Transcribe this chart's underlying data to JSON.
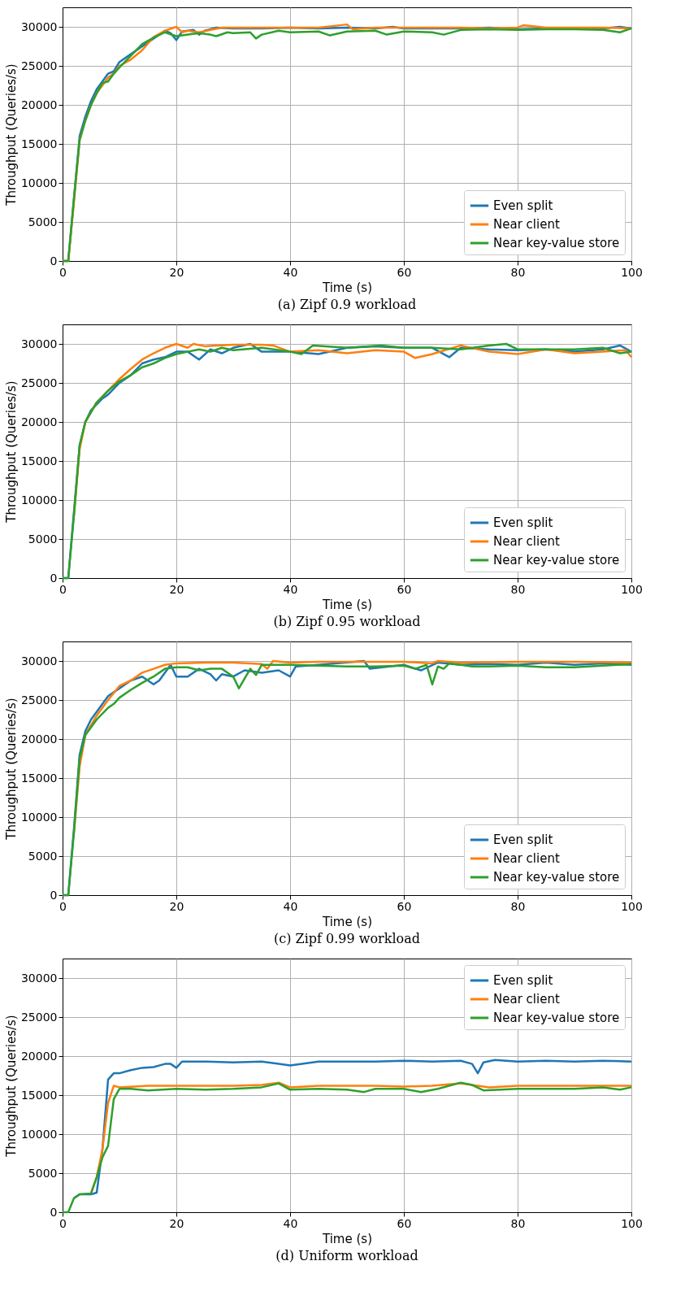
{
  "chart_data": [
    {
      "type": "line",
      "title": "(a) Zipf 0.9 workload",
      "xlabel": "Time (s)",
      "ylabel": "Throughput (Queries/s)",
      "xlim": [
        0,
        100
      ],
      "ylim": [
        0,
        32500
      ],
      "xticks": [
        0,
        20,
        40,
        60,
        80,
        100
      ],
      "yticks": [
        0,
        5000,
        10000,
        15000,
        20000,
        25000,
        30000
      ],
      "grid": true,
      "legend": "bottom right",
      "line_style": "solid",
      "marker": "none",
      "series": [
        {
          "name": "Even split",
          "color": "#1f77b4",
          "x": [
            0,
            1,
            2,
            3,
            4,
            5,
            6,
            7,
            8,
            9,
            10,
            12,
            14,
            16,
            18,
            19,
            20,
            21,
            23,
            24,
            25,
            27,
            30,
            35,
            40,
            45,
            50,
            55,
            58,
            60,
            65,
            70,
            75,
            80,
            85,
            90,
            95,
            98,
            100
          ],
          "values": [
            0,
            0,
            8000,
            16000,
            18500,
            20500,
            22000,
            23000,
            24000,
            24300,
            25500,
            26500,
            27500,
            28500,
            29500,
            29200,
            28300,
            29400,
            29600,
            29000,
            29500,
            29900,
            29800,
            29800,
            29900,
            29800,
            29900,
            29800,
            30000,
            29800,
            29800,
            29800,
            29900,
            29700,
            29800,
            29800,
            29800,
            30000,
            29800
          ]
        },
        {
          "name": "Near client",
          "color": "#ff7f0e",
          "x": [
            0,
            1,
            2,
            3,
            4,
            5,
            6,
            7,
            8,
            9,
            10,
            12,
            14,
            16,
            18,
            20,
            21,
            22,
            24,
            26,
            28,
            30,
            35,
            40,
            45,
            50,
            51,
            55,
            60,
            65,
            70,
            75,
            80,
            81,
            85,
            90,
            95,
            100
          ],
          "values": [
            0,
            0,
            7500,
            15500,
            18000,
            20000,
            21500,
            22500,
            23500,
            24000,
            25000,
            25800,
            27000,
            28700,
            29500,
            30000,
            29300,
            29500,
            29300,
            29600,
            29900,
            29900,
            29900,
            29900,
            29900,
            30300,
            29700,
            29900,
            29900,
            29900,
            29900,
            29800,
            29900,
            30200,
            29900,
            29900,
            29900,
            29800
          ]
        },
        {
          "name": "Near key-value store",
          "color": "#2ca02c",
          "x": [
            0,
            1,
            2,
            3,
            4,
            5,
            6,
            7,
            8,
            9,
            10,
            12,
            14,
            16,
            18,
            20,
            22,
            24,
            26,
            27,
            29,
            30,
            33,
            34,
            35,
            38,
            40,
            45,
            47,
            50,
            55,
            57,
            60,
            65,
            67,
            70,
            75,
            80,
            85,
            90,
            95,
            98,
            100
          ],
          "values": [
            0,
            0,
            8000,
            15500,
            18000,
            20000,
            21500,
            22800,
            23000,
            24000,
            24800,
            26300,
            27800,
            28600,
            29300,
            28800,
            29000,
            29200,
            29000,
            28800,
            29300,
            29200,
            29300,
            28500,
            29000,
            29500,
            29300,
            29400,
            28900,
            29400,
            29500,
            29000,
            29400,
            29300,
            29000,
            29600,
            29700,
            29600,
            29700,
            29700,
            29600,
            29300,
            29800
          ]
        }
      ]
    },
    {
      "type": "line",
      "title": "(b) Zipf 0.95 workload",
      "xlabel": "Time (s)",
      "ylabel": "Throughput (Queries/s)",
      "xlim": [
        0,
        100
      ],
      "ylim": [
        0,
        32500
      ],
      "xticks": [
        0,
        20,
        40,
        60,
        80,
        100
      ],
      "yticks": [
        0,
        5000,
        10000,
        15000,
        20000,
        25000,
        30000
      ],
      "grid": true,
      "legend": "bottom right",
      "line_style": "solid",
      "marker": "none",
      "series": [
        {
          "name": "Even split",
          "color": "#1f77b4",
          "x": [
            0,
            1,
            2,
            3,
            4,
            5,
            7,
            8,
            10,
            12,
            14,
            16,
            18,
            20,
            22,
            24,
            26,
            28,
            30,
            33,
            35,
            40,
            45,
            50,
            55,
            60,
            65,
            68,
            70,
            75,
            80,
            85,
            90,
            95,
            98,
            100
          ],
          "values": [
            0,
            0,
            8500,
            17000,
            20000,
            21500,
            23000,
            23500,
            25000,
            26000,
            27500,
            28000,
            28300,
            29000,
            29000,
            28000,
            29300,
            28800,
            29500,
            30000,
            29000,
            29000,
            28700,
            29500,
            29700,
            29500,
            29500,
            28300,
            29500,
            29300,
            29200,
            29300,
            29000,
            29300,
            29800,
            29000
          ]
        },
        {
          "name": "Near client",
          "color": "#ff7f0e",
          "x": [
            2,
            3,
            4,
            6,
            8,
            10,
            12,
            14,
            16,
            18,
            20,
            22,
            23,
            25,
            30,
            35,
            37,
            40,
            45,
            50,
            55,
            60,
            62,
            65,
            70,
            75,
            80,
            85,
            90,
            95,
            99,
            100
          ],
          "values": [
            8000,
            16500,
            20000,
            22500,
            24000,
            25500,
            26800,
            28000,
            28800,
            29500,
            30000,
            29500,
            30000,
            29700,
            29900,
            29900,
            29800,
            29000,
            29200,
            28800,
            29200,
            29000,
            28200,
            28700,
            29800,
            29000,
            28700,
            29300,
            28800,
            29000,
            29200,
            28300
          ]
        },
        {
          "name": "Near key-value store",
          "color": "#2ca02c",
          "x": [
            0,
            1,
            2,
            3,
            4,
            6,
            8,
            10,
            12,
            14,
            16,
            18,
            20,
            22,
            24,
            26,
            28,
            30,
            35,
            40,
            42,
            44,
            50,
            56,
            60,
            65,
            70,
            75,
            78,
            80,
            85,
            90,
            95,
            98,
            100
          ],
          "values": [
            0,
            0,
            8000,
            17000,
            20000,
            22500,
            24000,
            25200,
            26000,
            27000,
            27500,
            28200,
            28700,
            29000,
            29300,
            29000,
            29500,
            29200,
            29500,
            29000,
            28700,
            29800,
            29500,
            29800,
            29500,
            29500,
            29300,
            29800,
            30000,
            29300,
            29300,
            29300,
            29500,
            28800,
            29000
          ]
        }
      ]
    },
    {
      "type": "line",
      "title": "(c) Zipf 0.99 workload",
      "xlabel": "Time (s)",
      "ylabel": "Throughput (Queries/s)",
      "xlim": [
        0,
        100
      ],
      "ylim": [
        0,
        32500
      ],
      "xticks": [
        0,
        20,
        40,
        60,
        80,
        100
      ],
      "yticks": [
        0,
        5000,
        10000,
        15000,
        20000,
        25000,
        30000
      ],
      "grid": true,
      "legend": "bottom right",
      "line_style": "solid",
      "marker": "none",
      "series": [
        {
          "name": "Even split",
          "color": "#1f77b4",
          "x": [
            0,
            1,
            2,
            3,
            4,
            5,
            6,
            8,
            10,
            12,
            14,
            15,
            16,
            17,
            19,
            20,
            22,
            24,
            26,
            27,
            28,
            30,
            32,
            35,
            38,
            40,
            41,
            45,
            53,
            54,
            60,
            63,
            66,
            70,
            75,
            80,
            85,
            90,
            95,
            100
          ],
          "values": [
            0,
            0,
            8500,
            18000,
            21000,
            22500,
            23500,
            25500,
            26500,
            27500,
            28000,
            27500,
            27000,
            27500,
            29500,
            28000,
            28000,
            29000,
            28300,
            27500,
            28300,
            28000,
            28800,
            28500,
            28800,
            28000,
            29300,
            29500,
            30000,
            29000,
            29500,
            28800,
            29800,
            29500,
            29600,
            29500,
            29800,
            29500,
            29700,
            29500
          ]
        },
        {
          "name": "Near client",
          "color": "#ff7f0e",
          "x": [
            2,
            3,
            4,
            6,
            8,
            10,
            12,
            14,
            16,
            18,
            20,
            25,
            30,
            35,
            36,
            37,
            40,
            45,
            53,
            60,
            65,
            66,
            70,
            80,
            90,
            100
          ],
          "values": [
            8000,
            16500,
            20500,
            23000,
            25000,
            26800,
            27500,
            28500,
            29000,
            29500,
            29700,
            29800,
            29800,
            29600,
            29000,
            30000,
            29800,
            29900,
            29900,
            29900,
            29700,
            30000,
            29800,
            29900,
            29900,
            29800
          ]
        },
        {
          "name": "Near key-value store",
          "color": "#2ca02c",
          "x": [
            0,
            1,
            2,
            3,
            4,
            6,
            8,
            9,
            10,
            12,
            14,
            16,
            18,
            20,
            22,
            24,
            26,
            28,
            30,
            31,
            33,
            34,
            35,
            40,
            45,
            50,
            55,
            60,
            62,
            64,
            65,
            66,
            67,
            68,
            72,
            75,
            80,
            85,
            90,
            95,
            100
          ],
          "values": [
            0,
            0,
            8000,
            17500,
            20500,
            22500,
            24000,
            24500,
            25300,
            26300,
            27200,
            28000,
            29000,
            29200,
            29200,
            28800,
            29000,
            29000,
            28000,
            26500,
            29000,
            28200,
            29500,
            29500,
            29400,
            29300,
            29300,
            29400,
            29000,
            29500,
            27000,
            29300,
            29000,
            29700,
            29300,
            29300,
            29400,
            29200,
            29200,
            29400,
            29600
          ]
        }
      ]
    },
    {
      "type": "line",
      "title": "(d) Uniform workload",
      "xlabel": "Time (s)",
      "ylabel": "Throughput (Queries/s)",
      "xlim": [
        0,
        100
      ],
      "ylim": [
        0,
        32500
      ],
      "xticks": [
        0,
        20,
        40,
        60,
        80,
        100
      ],
      "yticks": [
        0,
        5000,
        10000,
        15000,
        20000,
        25000,
        30000
      ],
      "grid": true,
      "legend": "top right",
      "line_style": "solid",
      "marker": "none",
      "series": [
        {
          "name": "Even split",
          "color": "#1f77b4",
          "x": [
            2,
            3,
            4,
            5,
            6,
            7,
            8,
            9,
            10,
            12,
            14,
            16,
            18,
            19,
            20,
            21,
            25,
            30,
            35,
            38,
            40,
            45,
            50,
            55,
            60,
            65,
            70,
            72,
            73,
            74,
            76,
            80,
            85,
            90,
            95,
            100
          ],
          "values": [
            1800,
            2300,
            2300,
            2300,
            2500,
            8000,
            17000,
            17800,
            17800,
            18200,
            18500,
            18600,
            19000,
            19000,
            18500,
            19300,
            19300,
            19200,
            19300,
            19000,
            18800,
            19300,
            19300,
            19300,
            19400,
            19300,
            19400,
            19000,
            17800,
            19200,
            19500,
            19300,
            19400,
            19300,
            19400,
            19300
          ]
        },
        {
          "name": "Near client",
          "color": "#ff7f0e",
          "x": [
            5,
            6,
            7,
            8,
            9,
            10,
            15,
            20,
            25,
            30,
            35,
            38,
            40,
            45,
            50,
            55,
            60,
            65,
            70,
            75,
            80,
            85,
            90,
            100
          ],
          "values": [
            2400,
            4500,
            8000,
            14000,
            16200,
            16000,
            16200,
            16200,
            16200,
            16200,
            16300,
            16600,
            16000,
            16200,
            16200,
            16200,
            16100,
            16200,
            16500,
            16000,
            16200,
            16200,
            16200,
            16200
          ]
        },
        {
          "name": "Near key-value store",
          "color": "#2ca02c",
          "x": [
            0,
            1,
            2,
            3,
            5,
            6,
            7,
            8,
            9,
            10,
            12,
            15,
            20,
            25,
            30,
            35,
            38,
            40,
            45,
            50,
            53,
            55,
            60,
            63,
            66,
            70,
            72,
            74,
            80,
            85,
            90,
            95,
            98,
            100
          ],
          "values": [
            0,
            0,
            1800,
            2300,
            2400,
            4500,
            7000,
            8500,
            14500,
            15800,
            15800,
            15600,
            15800,
            15700,
            15800,
            16000,
            16500,
            15700,
            15800,
            15700,
            15400,
            15800,
            15800,
            15400,
            15800,
            16600,
            16300,
            15600,
            15800,
            15800,
            15800,
            16000,
            15700,
            16000
          ]
        }
      ]
    }
  ]
}
